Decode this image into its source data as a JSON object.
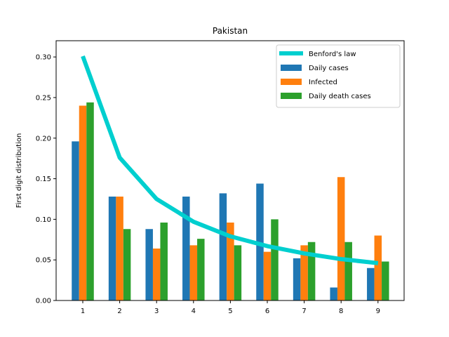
{
  "chart_data": {
    "type": "bar",
    "title": "Pakistan",
    "xlabel": "",
    "ylabel": "First digit distribution",
    "categories": [
      "1",
      "2",
      "3",
      "4",
      "5",
      "6",
      "7",
      "8",
      "9"
    ],
    "ylim": [
      0,
      0.32
    ],
    "yticks": [
      "0.00",
      "0.05",
      "0.10",
      "0.15",
      "0.20",
      "0.25",
      "0.30"
    ],
    "grid": false,
    "legend_position": "top-right",
    "series": [
      {
        "name": "Daily cases",
        "kind": "bar",
        "color": "#1f77b4",
        "values": [
          0.196,
          0.128,
          0.088,
          0.128,
          0.132,
          0.144,
          0.052,
          0.016,
          0.04
        ]
      },
      {
        "name": "Infected",
        "kind": "bar",
        "color": "#ff7f0e",
        "values": [
          0.24,
          0.128,
          0.064,
          0.068,
          0.096,
          0.06,
          0.068,
          0.152,
          0.08
        ]
      },
      {
        "name": "Daily death cases",
        "kind": "bar",
        "color": "#2ca02c",
        "values": [
          0.244,
          0.088,
          0.096,
          0.076,
          0.068,
          0.1,
          0.072,
          0.072,
          0.048
        ]
      },
      {
        "name": "Benford's law",
        "kind": "line",
        "color": "#00cfcf",
        "values": [
          0.301,
          0.176,
          0.125,
          0.097,
          0.079,
          0.067,
          0.058,
          0.051,
          0.046
        ]
      }
    ]
  }
}
